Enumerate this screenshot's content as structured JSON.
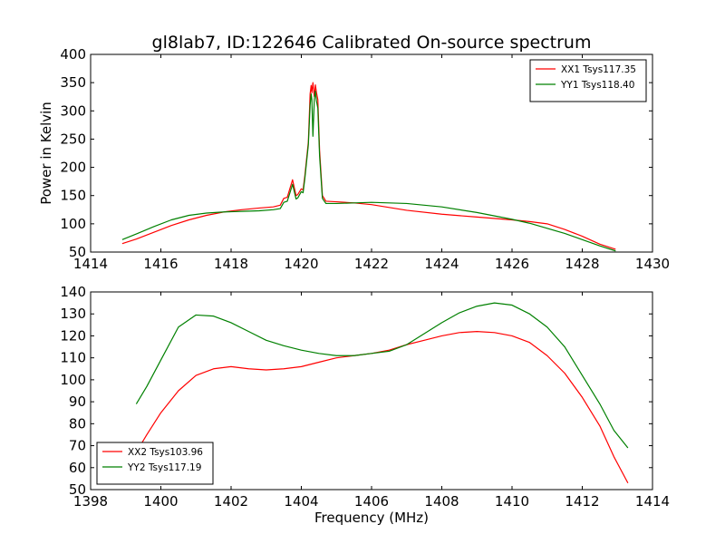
{
  "figure": {
    "title": "gl8lab7, ID:122646 Calibrated On-source spectrum"
  },
  "chart_data": [
    {
      "type": "line",
      "title": "gl8lab7, ID:122646 Calibrated On-source spectrum",
      "xlabel": "",
      "ylabel": "Power in Kelvin",
      "xlim": [
        1414,
        1430
      ],
      "ylim": [
        50,
        400
      ],
      "xticks": [
        1414,
        1416,
        1418,
        1420,
        1422,
        1424,
        1426,
        1428,
        1430
      ],
      "yticks": [
        50,
        100,
        150,
        200,
        250,
        300,
        350,
        400
      ],
      "grid": false,
      "legend": "top-right",
      "series": [
        {
          "name": "XX1 Tsys117.35",
          "color": "#ff0000",
          "points": [
            [
              1414.9,
              65
            ],
            [
              1415.3,
              73
            ],
            [
              1415.8,
              85
            ],
            [
              1416.3,
              97
            ],
            [
              1416.8,
              107
            ],
            [
              1417.3,
              115
            ],
            [
              1417.8,
              121
            ],
            [
              1418.3,
              125
            ],
            [
              1418.8,
              128
            ],
            [
              1419.2,
              130
            ],
            [
              1419.4,
              133
            ],
            [
              1419.5,
              145
            ],
            [
              1419.6,
              147
            ],
            [
              1419.75,
              178
            ],
            [
              1419.85,
              150
            ],
            [
              1419.9,
              152
            ],
            [
              1420.0,
              162
            ],
            [
              1420.05,
              160
            ],
            [
              1420.1,
              185
            ],
            [
              1420.2,
              245
            ],
            [
              1420.25,
              330
            ],
            [
              1420.28,
              345
            ],
            [
              1420.3,
              332
            ],
            [
              1420.33,
              350
            ],
            [
              1420.37,
              325
            ],
            [
              1420.4,
              346
            ],
            [
              1420.43,
              333
            ],
            [
              1420.47,
              320
            ],
            [
              1420.52,
              230
            ],
            [
              1420.6,
              150
            ],
            [
              1420.7,
              140
            ],
            [
              1421.0,
              139
            ],
            [
              1421.5,
              137
            ],
            [
              1422,
              134
            ],
            [
              1423,
              124
            ],
            [
              1424,
              117
            ],
            [
              1425,
              112
            ],
            [
              1426,
              107
            ],
            [
              1426.5,
              104
            ],
            [
              1427,
              100
            ],
            [
              1427.5,
              90
            ],
            [
              1428,
              78
            ],
            [
              1428.5,
              64
            ],
            [
              1428.95,
              55
            ]
          ]
        },
        {
          "name": "YY1 Tsys118.40",
          "color": "#008000",
          "points": [
            [
              1414.9,
              72
            ],
            [
              1415.3,
              82
            ],
            [
              1415.8,
              95
            ],
            [
              1416.3,
              107
            ],
            [
              1416.8,
              115
            ],
            [
              1417.3,
              119
            ],
            [
              1417.8,
              121
            ],
            [
              1418.3,
              122
            ],
            [
              1418.8,
              123
            ],
            [
              1419.2,
              125
            ],
            [
              1419.4,
              127
            ],
            [
              1419.5,
              138
            ],
            [
              1419.6,
              140
            ],
            [
              1419.75,
              170
            ],
            [
              1419.85,
              144
            ],
            [
              1419.9,
              146
            ],
            [
              1420.0,
              157
            ],
            [
              1420.05,
              155
            ],
            [
              1420.1,
              180
            ],
            [
              1420.2,
              240
            ],
            [
              1420.25,
              310
            ],
            [
              1420.28,
              330
            ],
            [
              1420.3,
              320
            ],
            [
              1420.33,
              255
            ],
            [
              1420.37,
              320
            ],
            [
              1420.4,
              335
            ],
            [
              1420.43,
              318
            ],
            [
              1420.47,
              305
            ],
            [
              1420.52,
              220
            ],
            [
              1420.6,
              145
            ],
            [
              1420.7,
              136
            ],
            [
              1421.0,
              136
            ],
            [
              1421.5,
              137
            ],
            [
              1422,
              138
            ],
            [
              1423,
              136
            ],
            [
              1424,
              130
            ],
            [
              1425,
              120
            ],
            [
              1426,
              108
            ],
            [
              1426.5,
              101
            ],
            [
              1427,
              92
            ],
            [
              1427.5,
              83
            ],
            [
              1428,
              72
            ],
            [
              1428.5,
              61
            ],
            [
              1428.95,
              52
            ]
          ]
        }
      ]
    },
    {
      "type": "line",
      "title": "",
      "xlabel": "Frequency (MHz)",
      "ylabel": "",
      "xlim": [
        1398,
        1414
      ],
      "ylim": [
        50,
        140
      ],
      "xticks": [
        1398,
        1400,
        1402,
        1404,
        1406,
        1408,
        1410,
        1412,
        1414
      ],
      "yticks": [
        50,
        60,
        70,
        80,
        90,
        100,
        110,
        120,
        130,
        140
      ],
      "grid": false,
      "legend": "bottom-left",
      "series": [
        {
          "name": "XX2 Tsys103.96",
          "color": "#ff0000",
          "points": [
            [
              1399.3,
              67
            ],
            [
              1399.6,
              75
            ],
            [
              1400.0,
              85
            ],
            [
              1400.5,
              95
            ],
            [
              1401.0,
              102
            ],
            [
              1401.5,
              105
            ],
            [
              1402.0,
              106
            ],
            [
              1402.5,
              105
            ],
            [
              1403.0,
              104.5
            ],
            [
              1403.5,
              105
            ],
            [
              1404.0,
              106
            ],
            [
              1404.5,
              108
            ],
            [
              1405.0,
              110
            ],
            [
              1405.5,
              111
            ],
            [
              1406.0,
              112
            ],
            [
              1406.5,
              113.5
            ],
            [
              1407.0,
              116
            ],
            [
              1407.5,
              118
            ],
            [
              1408.0,
              120
            ],
            [
              1408.5,
              121.5
            ],
            [
              1409.0,
              122
            ],
            [
              1409.5,
              121.5
            ],
            [
              1410.0,
              120
            ],
            [
              1410.5,
              117
            ],
            [
              1411.0,
              111
            ],
            [
              1411.5,
              103
            ],
            [
              1412.0,
              92
            ],
            [
              1412.5,
              79
            ],
            [
              1412.9,
              65
            ],
            [
              1413.3,
              53
            ]
          ]
        },
        {
          "name": "YY2 Tsys117.19",
          "color": "#008000",
          "points": [
            [
              1399.3,
              89
            ],
            [
              1399.6,
              97
            ],
            [
              1400.0,
              109
            ],
            [
              1400.5,
              124
            ],
            [
              1401.0,
              129.5
            ],
            [
              1401.5,
              129
            ],
            [
              1402.0,
              126
            ],
            [
              1402.5,
              122
            ],
            [
              1403.0,
              118
            ],
            [
              1403.5,
              115.5
            ],
            [
              1404.0,
              113.5
            ],
            [
              1404.5,
              112
            ],
            [
              1405.0,
              111
            ],
            [
              1405.5,
              111
            ],
            [
              1406.0,
              112
            ],
            [
              1406.5,
              113
            ],
            [
              1407.0,
              116
            ],
            [
              1407.5,
              121
            ],
            [
              1408.0,
              126
            ],
            [
              1408.5,
              130.5
            ],
            [
              1409.0,
              133.5
            ],
            [
              1409.5,
              135
            ],
            [
              1410.0,
              134
            ],
            [
              1410.5,
              130
            ],
            [
              1411.0,
              124
            ],
            [
              1411.5,
              115
            ],
            [
              1412.0,
              102
            ],
            [
              1412.5,
              89
            ],
            [
              1412.9,
              77
            ],
            [
              1413.3,
              69
            ]
          ]
        }
      ]
    }
  ]
}
